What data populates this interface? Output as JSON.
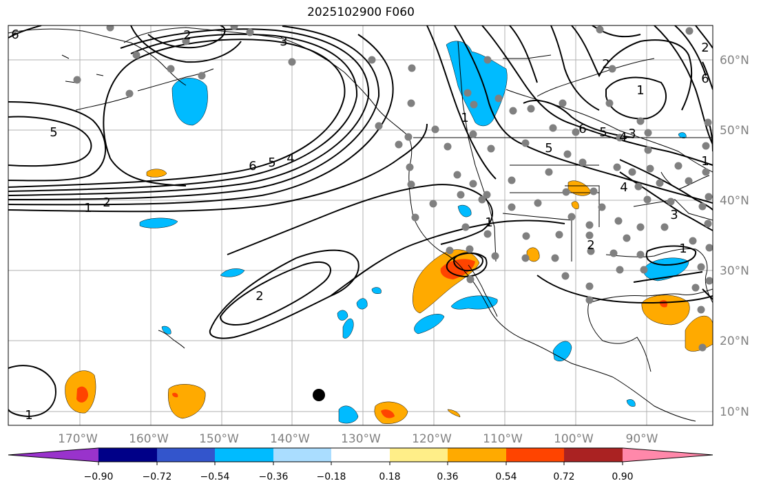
{
  "title": "2025102900 F060",
  "lon_labels": [
    "170°W",
    "160°W",
    "150°W",
    "140°W",
    "130°W",
    "120°W",
    "110°W",
    "100°W",
    "90°W"
  ],
  "lat_labels": [
    "60°N",
    "50°N",
    "40°N",
    "30°N",
    "20°N",
    "10°N"
  ],
  "colorbar": {
    "ticks": [
      "−0.90",
      "−0.72",
      "−0.54",
      "−0.36",
      "−0.18",
      "0.18",
      "0.36",
      "0.54",
      "0.72",
      "0.90"
    ],
    "colors": [
      "#9933cc",
      "#000088",
      "#3355cc",
      "#00bbff",
      "#aaddff",
      "#ffffff",
      "#ffee88",
      "#ffaa00",
      "#ff4400",
      "#aa2222",
      "#ff88aa"
    ]
  },
  "contour_labels": [
    "6",
    "2",
    "3",
    "5",
    "6",
    "5",
    "4",
    "1",
    "2",
    "2",
    "1",
    "1",
    "1",
    "2",
    "2",
    "5",
    "6",
    "5",
    "4",
    "3",
    "4",
    "3",
    "1",
    "1",
    "2",
    "6",
    "1"
  ],
  "colors": {
    "positive": "#ffaa00",
    "positive_strong": "#ff4400",
    "negative": "#00bbff",
    "station": "#808080",
    "grid": "#b0b0b0",
    "axis_label": "#808080"
  }
}
